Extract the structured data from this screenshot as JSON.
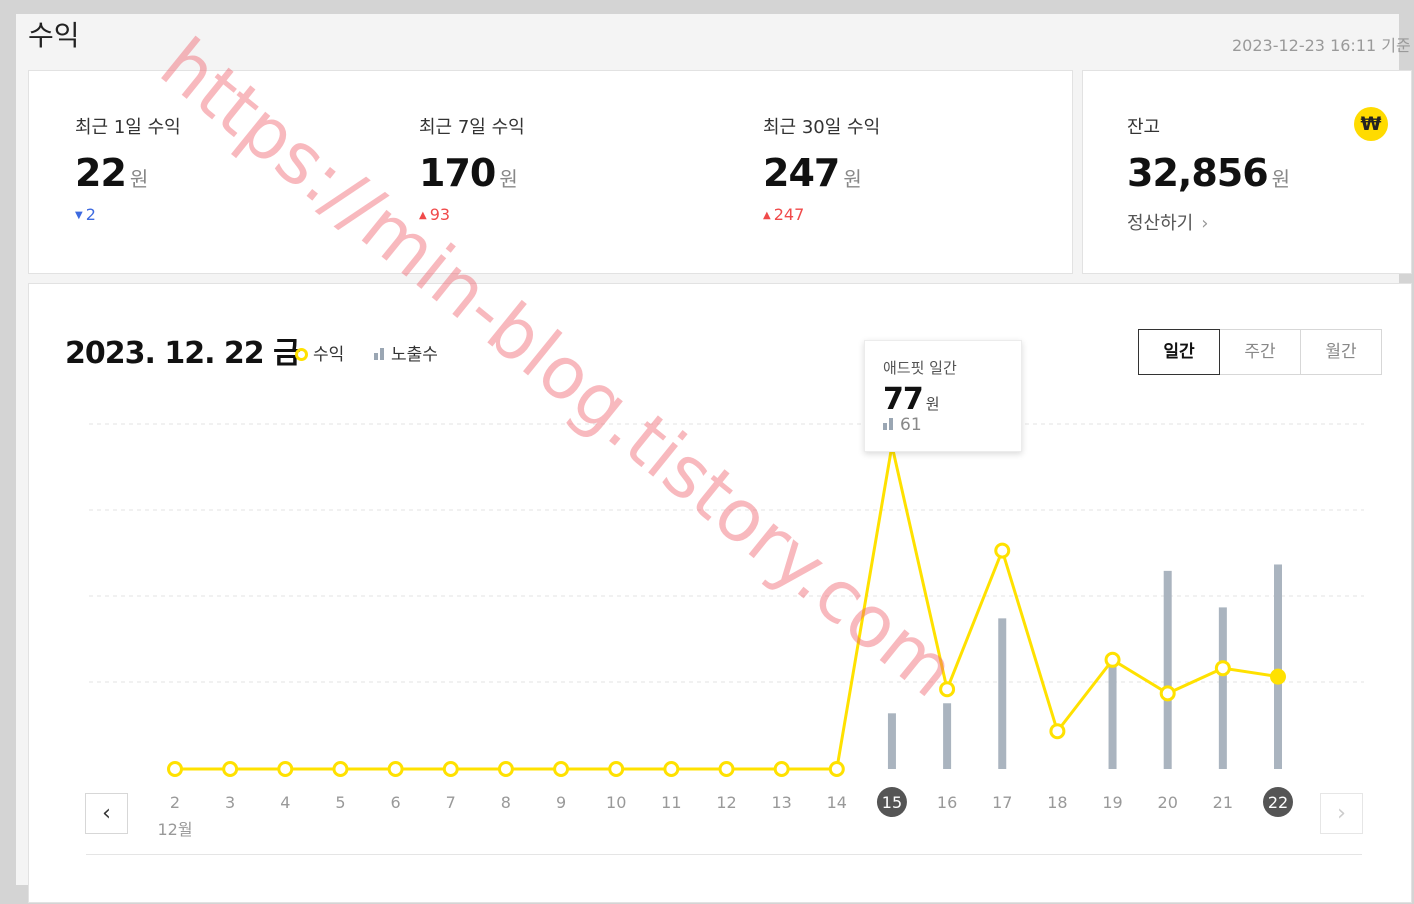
{
  "page": {
    "title": "수익",
    "timestamp": "2023-12-23 16:11 기준"
  },
  "summary": [
    {
      "label": "최근 1일 수익",
      "value": "22",
      "unit": "원",
      "delta": "2",
      "direction": "down"
    },
    {
      "label": "최근 7일 수익",
      "value": "170",
      "unit": "원",
      "delta": "93",
      "direction": "up"
    },
    {
      "label": "최근 30일 수익",
      "value": "247",
      "unit": "원",
      "delta": "247",
      "direction": "up"
    }
  ],
  "balance": {
    "label": "잔고",
    "value": "32,856",
    "unit": "원",
    "badge": "₩",
    "settle_label": "정산하기",
    "badge_color": "#ffdb00"
  },
  "chart_header": {
    "date": "2023. 12. 22 금",
    "legend_revenue": "수익",
    "legend_impressions": "노출수"
  },
  "tabs": [
    {
      "label": "일간",
      "active": true
    },
    {
      "label": "주간",
      "active": false
    },
    {
      "label": "월간",
      "active": false
    }
  ],
  "tooltip": {
    "title": "애드핏 일간",
    "value": "77",
    "unit": "원",
    "impressions": "61"
  },
  "nav": {
    "prev_icon": "chevron-left-icon",
    "next_icon": "chevron-right-icon"
  },
  "chart_data": {
    "type": "line",
    "x": [
      "2",
      "3",
      "4",
      "5",
      "6",
      "7",
      "8",
      "9",
      "10",
      "11",
      "12",
      "13",
      "14",
      "15",
      "16",
      "17",
      "18",
      "19",
      "20",
      "21",
      "22"
    ],
    "month_label": "12월",
    "highlighted_days": [
      "15",
      "22"
    ],
    "series": [
      {
        "name": "수익",
        "type": "line",
        "color": "#ffe100",
        "values": [
          0,
          0,
          0,
          0,
          0,
          0,
          0,
          0,
          0,
          0,
          0,
          0,
          0,
          77,
          19,
          52,
          9,
          26,
          18,
          24,
          22
        ]
      },
      {
        "name": "노출수",
        "type": "bar",
        "color": "#aab4bf",
        "values": [
          0,
          0,
          0,
          0,
          0,
          0,
          0,
          0,
          0,
          0,
          0,
          0,
          0,
          61,
          72,
          165,
          0,
          120,
          217,
          177,
          224
        ]
      }
    ],
    "grid": true
  },
  "watermark": "https://min-blog.tistory.com"
}
